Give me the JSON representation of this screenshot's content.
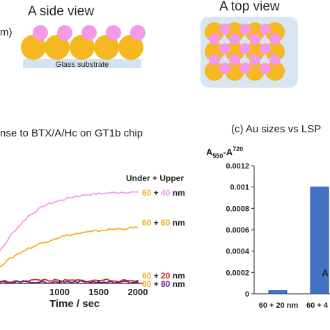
{
  "top": {
    "side_title": "A side view",
    "top_title": "A top view",
    "cut_label": "m)",
    "substrate_label": "Glass substrate"
  },
  "colors": {
    "gold": "#F6B820",
    "pink": "#F29AE8",
    "glass": "#D4E3F2",
    "panel": "#D8E6F4",
    "line_40": "#EF9AEF",
    "line_60": "#F0B020",
    "line_20": "#E02020",
    "line_80": "#602890",
    "bar": "#4472C4"
  },
  "chart_data": [
    {
      "type": "line",
      "title": "nse to BTX/A/Hc on GT1b chip",
      "xlabel": "Time / sec",
      "ylabel": "",
      "x_ticks": [
        "1000",
        "1500",
        "2000"
      ],
      "legend_header": "Under + Upper",
      "series": [
        {
          "name": "60 + 40 nm",
          "under": "60",
          "upper": "40",
          "color": "#EF9AEF",
          "x": [
            0,
            200,
            400,
            600,
            800,
            1000,
            1200,
            1400,
            1600,
            1800,
            2000
          ],
          "y": [
            0.0,
            0.25,
            0.47,
            0.63,
            0.73,
            0.78,
            0.82,
            0.84,
            0.85,
            0.86,
            0.86
          ]
        },
        {
          "name": "60 + 60 nm",
          "under": "60",
          "upper": "60",
          "color": "#F0B020",
          "x": [
            0,
            200,
            400,
            600,
            800,
            1000,
            1200,
            1400,
            1600,
            1800,
            2000
          ],
          "y": [
            0.0,
            0.13,
            0.24,
            0.32,
            0.38,
            0.43,
            0.46,
            0.48,
            0.5,
            0.51,
            0.52
          ]
        },
        {
          "name": "60 + 20 nm",
          "under": "60",
          "upper": "20",
          "color": "#E02020",
          "x": [
            0,
            200,
            400,
            600,
            800,
            1000,
            1200,
            1400,
            1600,
            1800,
            2000
          ],
          "y": [
            0.0,
            0.01,
            0.0,
            0.015,
            0.02,
            0.01,
            0.015,
            0.01,
            0.02,
            0.01,
            0.015
          ]
        },
        {
          "name": "60 + 80 nm",
          "under": "60",
          "upper": "80",
          "color": "#602890",
          "x": [
            0,
            200,
            400,
            600,
            800,
            1000,
            1200,
            1400,
            1600,
            1800,
            2000
          ],
          "y": [
            0.0,
            -0.005,
            0.0,
            0.005,
            -0.005,
            0.0,
            0.005,
            0.0,
            -0.005,
            0.0,
            0.0
          ]
        }
      ]
    },
    {
      "type": "bar",
      "title": "(c) Au sizes vs LSP",
      "ylabel": "A550-A720",
      "ylabel_main": "A",
      "ylabel_sub1": "550",
      "ylabel_dash": "-A",
      "ylabel_sub2": "720",
      "y_ticks": [
        "0.0012",
        "0.001",
        "0.0008",
        "0.0006",
        "0.0004",
        "0.0002",
        "0"
      ],
      "ylim": [
        0,
        0.0012
      ],
      "categories": [
        "60 + 20 nm",
        "60 + 4"
      ],
      "values": [
        3e-05,
        0.001
      ],
      "corner_label": "A"
    }
  ]
}
